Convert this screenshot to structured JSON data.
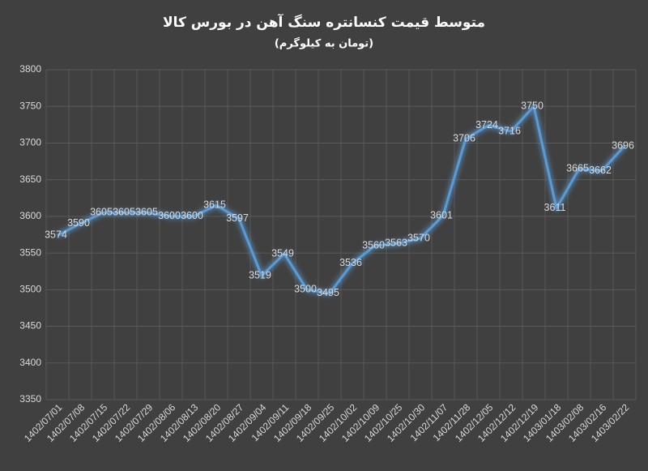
{
  "chart_data": {
    "type": "line",
    "title": "متوسط قیمت کنسانتره سنگ آهن در بورس کالا",
    "subtitle": "(تومان به کیلوگرم)",
    "categories": [
      "1402/07/01",
      "1402/07/08",
      "1402/07/15",
      "1402/07/22",
      "1402/07/29",
      "1402/08/06",
      "1402/08/13",
      "1402/08/20",
      "1402/08/27",
      "1402/09/04",
      "1402/09/11",
      "1402/09/18",
      "1402/09/25",
      "1402/10/02",
      "1402/10/09",
      "1402/10/25",
      "1402/10/30",
      "1402/11/07",
      "1402/11/28",
      "1402/12/05",
      "1402/12/12",
      "1402/12/19",
      "1403/01/18",
      "1403/02/08",
      "1403/02/16",
      "1403/02/22"
    ],
    "values": [
      3574,
      3590,
      3605,
      3605,
      3605,
      3600,
      3600,
      3615,
      3597,
      3519,
      3549,
      3500,
      3495,
      3536,
      3560,
      3563,
      3570,
      3601,
      3706,
      3724,
      3716,
      3750,
      3611,
      3665,
      3662,
      3696
    ],
    "color": "#5b9bd5",
    "ylim": [
      3350,
      3800
    ],
    "yticks": [
      3350,
      3400,
      3450,
      3500,
      3550,
      3600,
      3650,
      3700,
      3750,
      3800
    ],
    "grid": true
  }
}
